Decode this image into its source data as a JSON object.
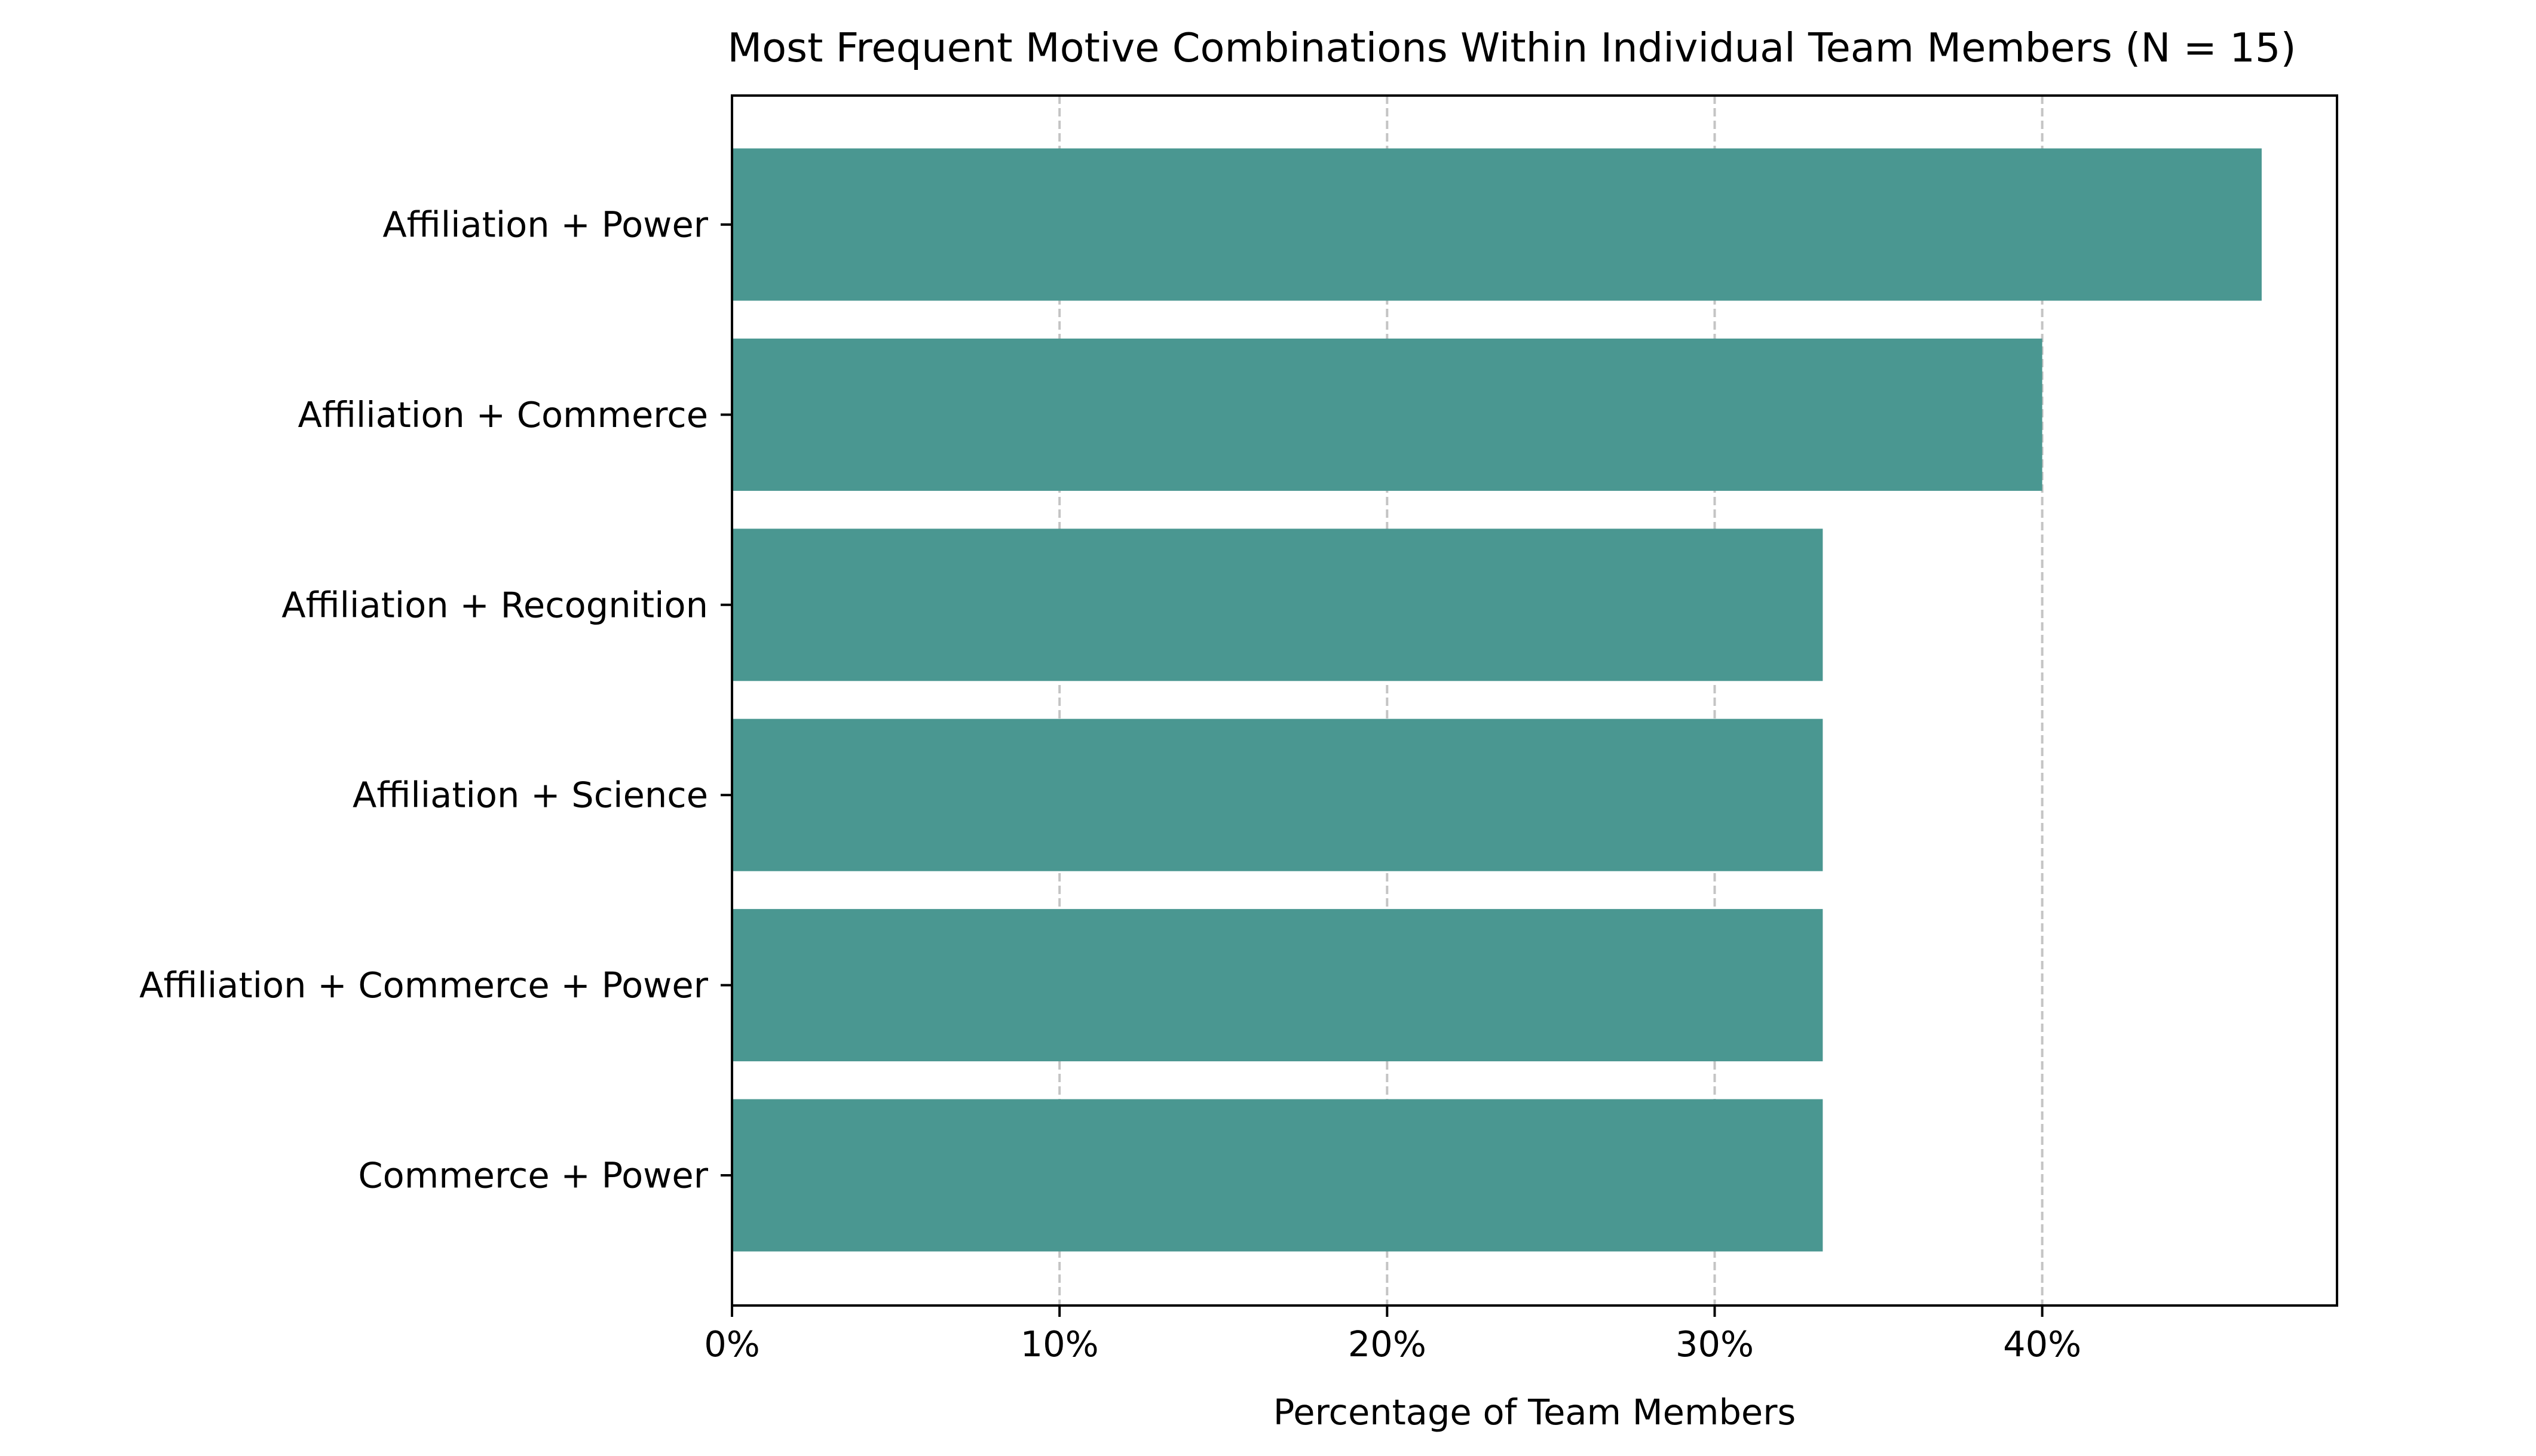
{
  "chart_data": {
    "type": "bar",
    "orientation": "horizontal",
    "title": "Most Frequent Motive Combinations Within Individual Team Members (N = 15)",
    "xlabel": "Percentage of Team Members",
    "ylabel": "",
    "categories": [
      "Affiliation + Power",
      "Affiliation + Commerce",
      "Affiliation + Recognition",
      "Affiliation + Science",
      "Affiliation + Commerce + Power",
      "Commerce + Power"
    ],
    "values": [
      46.7,
      40.0,
      33.3,
      33.3,
      33.3,
      33.3
    ],
    "xlim": [
      0,
      49
    ],
    "xticks": [
      0,
      10,
      20,
      30,
      40
    ],
    "xtick_labels": [
      "0%",
      "10%",
      "20%",
      "30%",
      "40%"
    ],
    "grid": "x-axis dashed",
    "bar_color": "#4a9791",
    "grid_color": "#c4c4c4"
  }
}
